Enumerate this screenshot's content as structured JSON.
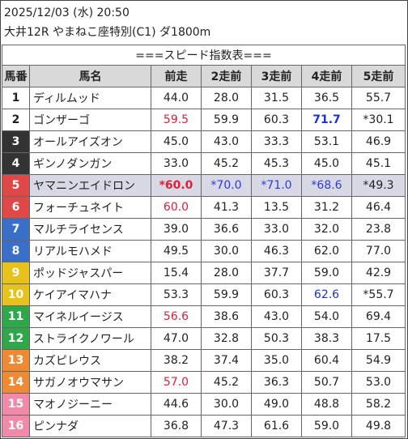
{
  "header": {
    "line1": "2025/12/03 (水) 20:50",
    "line2": "大井12R やまねこ座特別(C1) ダ1800m"
  },
  "table": {
    "title": "===スピード指数表===",
    "columns": [
      "馬番",
      "馬名",
      "前走",
      "2走前",
      "3走前",
      "4走前",
      "5走前"
    ],
    "rows": [
      {
        "num": "1",
        "name": "ディルムッド",
        "vals": [
          "44.0",
          "28.0",
          "31.5",
          "36.5",
          "55.7"
        ],
        "bg": "#ffffff",
        "fg": "#222222",
        "colors": [
          "#222",
          "#222",
          "#222",
          "#222",
          "#222"
        ],
        "bold": [
          false,
          false,
          false,
          false,
          false
        ]
      },
      {
        "num": "2",
        "name": "ゴンザーゴ",
        "vals": [
          "59.5",
          "59.9",
          "60.3",
          "71.7",
          "*30.1"
        ],
        "bg": "#000000",
        "fg": "#222222",
        "colors": [
          "#e0203a",
          "#222",
          "#222",
          "#1a30d8",
          "#222"
        ],
        "bold": [
          false,
          false,
          false,
          true,
          false
        ]
      },
      {
        "num": "3",
        "name": "オールアイズオン",
        "vals": [
          "45.0",
          "43.0",
          "33.3",
          "53.1",
          "46.9"
        ],
        "bg": "#333333",
        "fg": "#ffffff",
        "colors": [
          "#222",
          "#222",
          "#222",
          "#222",
          "#222"
        ],
        "bold": [
          false,
          false,
          false,
          false,
          false
        ]
      },
      {
        "num": "4",
        "name": "ギンノダンガン",
        "vals": [
          "33.0",
          "45.2",
          "45.3",
          "45.0",
          "45.1"
        ],
        "bg": "#333333",
        "fg": "#ffffff",
        "colors": [
          "#222",
          "#222",
          "#222",
          "#222",
          "#222"
        ],
        "bold": [
          false,
          false,
          false,
          false,
          false
        ]
      },
      {
        "num": "5",
        "name": "ヤマニンエイドロン",
        "vals": [
          "*60.0",
          "*70.0",
          "*71.0",
          "*68.6",
          "*49.3"
        ],
        "bg": "#e04848",
        "fg": "#ffffff",
        "colors": [
          "#e0203a",
          "#2d3ad8",
          "#2d3ad8",
          "#2d3ad8",
          "#222"
        ],
        "bold": [
          true,
          false,
          false,
          false,
          false
        ]
      },
      {
        "num": "6",
        "name": "フォーチュネイト",
        "vals": [
          "60.0",
          "41.3",
          "13.5",
          "31.2",
          "46.4"
        ],
        "bg": "#e04848",
        "fg": "#ffffff",
        "colors": [
          "#e0203a",
          "#222",
          "#222",
          "#222",
          "#222"
        ],
        "bold": [
          false,
          false,
          false,
          false,
          false
        ]
      },
      {
        "num": "7",
        "name": "マルチライセンス",
        "vals": [
          "39.0",
          "36.6",
          "33.0",
          "32.0",
          "23.8"
        ],
        "bg": "#3a6fc9",
        "fg": "#ffffff",
        "colors": [
          "#222",
          "#222",
          "#222",
          "#222",
          "#222"
        ],
        "bold": [
          false,
          false,
          false,
          false,
          false
        ]
      },
      {
        "num": "8",
        "name": "リアルモハメド",
        "vals": [
          "49.5",
          "30.0",
          "46.3",
          "62.0",
          "77.0"
        ],
        "bg": "#3a6fc9",
        "fg": "#ffffff",
        "colors": [
          "#222",
          "#222",
          "#222",
          "#222",
          "#222"
        ],
        "bold": [
          false,
          false,
          false,
          false,
          false
        ]
      },
      {
        "num": "9",
        "name": "ポッドジャスパー",
        "vals": [
          "15.4",
          "28.0",
          "37.7",
          "59.0",
          "42.9"
        ],
        "bg": "#e8c21c",
        "fg": "#ffffff",
        "colors": [
          "#222",
          "#222",
          "#222",
          "#222",
          "#222"
        ],
        "bold": [
          false,
          false,
          false,
          false,
          false
        ]
      },
      {
        "num": "10",
        "name": "ケイアイマハナ",
        "vals": [
          "53.3",
          "59.9",
          "60.3",
          "62.6",
          "*55.7"
        ],
        "bg": "#e8c21c",
        "fg": "#ffffff",
        "colors": [
          "#222",
          "#222",
          "#222",
          "#1a30d8",
          "#222"
        ],
        "bold": [
          false,
          false,
          false,
          false,
          false
        ]
      },
      {
        "num": "11",
        "name": "マイネルイージス",
        "vals": [
          "56.6",
          "38.6",
          "43.0",
          "54.0",
          "69.4"
        ],
        "bg": "#2ea84a",
        "fg": "#ffffff",
        "colors": [
          "#e0203a",
          "#222",
          "#222",
          "#222",
          "#222"
        ],
        "bold": [
          false,
          false,
          false,
          false,
          false
        ]
      },
      {
        "num": "12",
        "name": "ストライクノワール",
        "vals": [
          "47.0",
          "32.8",
          "50.3",
          "38.3",
          "17.5"
        ],
        "bg": "#2ea84a",
        "fg": "#ffffff",
        "colors": [
          "#222",
          "#222",
          "#222",
          "#222",
          "#222"
        ],
        "bold": [
          false,
          false,
          false,
          false,
          false
        ]
      },
      {
        "num": "13",
        "name": "カズピレウス",
        "vals": [
          "38.2",
          "37.4",
          "35.0",
          "60.4",
          "54.9"
        ],
        "bg": "#ee8a34",
        "fg": "#ffffff",
        "colors": [
          "#222",
          "#222",
          "#222",
          "#222",
          "#222"
        ],
        "bold": [
          false,
          false,
          false,
          false,
          false
        ]
      },
      {
        "num": "14",
        "name": "サガノオウマサン",
        "vals": [
          "57.0",
          "45.2",
          "36.3",
          "50.7",
          "53.0"
        ],
        "bg": "#ee8a34",
        "fg": "#ffffff",
        "colors": [
          "#e0203a",
          "#222",
          "#222",
          "#222",
          "#222"
        ],
        "bold": [
          false,
          false,
          false,
          false,
          false
        ]
      },
      {
        "num": "15",
        "name": "マオノジーニー",
        "vals": [
          "44.6",
          "30.0",
          "49.0",
          "48.8",
          "58.2"
        ],
        "bg": "#f08aa8",
        "fg": "#ffffff",
        "colors": [
          "#222",
          "#222",
          "#222",
          "#222",
          "#222"
        ],
        "bold": [
          false,
          false,
          false,
          false,
          false
        ]
      },
      {
        "num": "16",
        "name": "ピンナダ",
        "vals": [
          "36.8",
          "47.3",
          "61.6",
          "59.0",
          "49.8"
        ],
        "bg": "#f08aa8",
        "fg": "#ffffff",
        "colors": [
          "#222",
          "#222",
          "#222",
          "#222",
          "#222"
        ],
        "bold": [
          false,
          false,
          false,
          false,
          false
        ]
      }
    ],
    "highlight_row_bg": "#d9d9e6",
    "header_bg": "#d9d9d9"
  }
}
